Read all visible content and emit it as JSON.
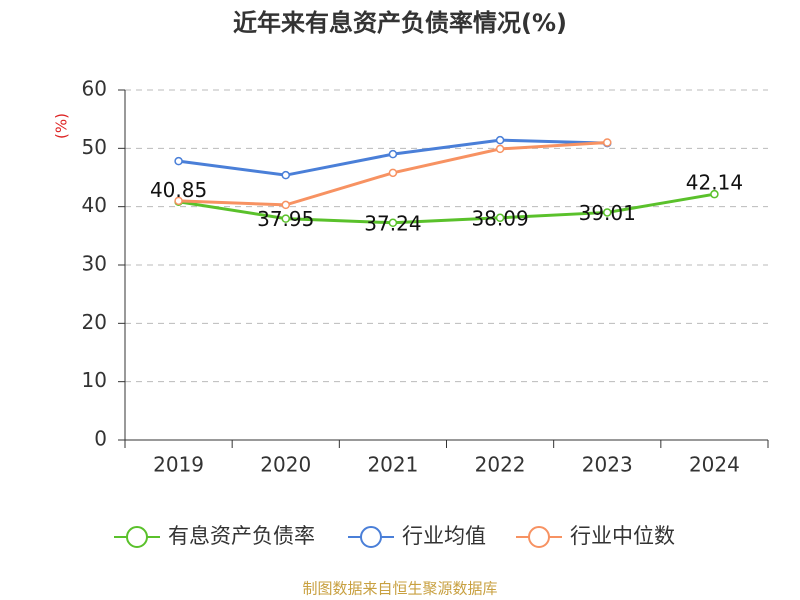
{
  "chart_data": {
    "type": "line",
    "title": "近年来有息资产负债率情况(%)",
    "y_label": "(%)",
    "source": "制图数据来自恒生聚源数据库",
    "categories": [
      "2019",
      "2020",
      "2021",
      "2022",
      "2023",
      "2024"
    ],
    "series": [
      {
        "name": "有息资产负债率",
        "color": "#5ac12b",
        "values": [
          40.85,
          37.95,
          37.24,
          38.09,
          39.01,
          42.14
        ],
        "labels": true
      },
      {
        "name": "行业均值",
        "color": "#4a7fd8",
        "values": [
          47.8,
          45.4,
          49.0,
          51.4,
          50.9,
          null
        ]
      },
      {
        "name": "行业中位数",
        "color": "#f79262",
        "values": [
          41.0,
          40.3,
          45.8,
          49.9,
          51.0,
          null
        ]
      }
    ],
    "ylim": [
      0,
      60
    ],
    "yticks": [
      0,
      10,
      20,
      30,
      40,
      50,
      60
    ],
    "grid": true,
    "legend": "bottom"
  }
}
